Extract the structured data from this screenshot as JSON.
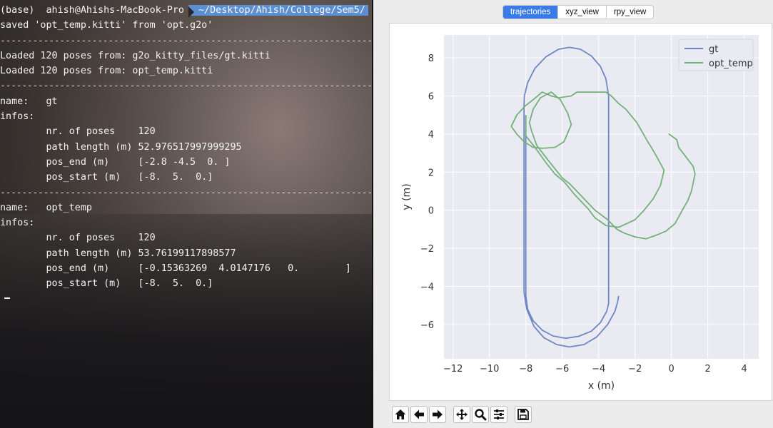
{
  "terminal": {
    "prompt": {
      "env": "(base)",
      "user_host": "ahish@Ahishs-MacBook-Pro",
      "path": "~/Desktop/Ahish/College/Sem5/"
    },
    "lines": [
      {
        "kind": "text",
        "text": "saved 'opt_temp.kitti' from 'opt.g2o'"
      },
      {
        "kind": "sep",
        "text": "--------------------------------------------------------------------------------"
      },
      {
        "kind": "text",
        "text": "Loaded 120 poses from: g2o_kitty_files/gt.kitti"
      },
      {
        "kind": "text",
        "text": "Loaded 120 poses from: opt_temp.kitti"
      },
      {
        "kind": "sep",
        "text": "--------------------------------------------------------------------------------"
      },
      {
        "kind": "text",
        "text": "name:   gt"
      },
      {
        "kind": "text",
        "text": "infos:"
      },
      {
        "kind": "text",
        "text": "        nr. of poses    120"
      },
      {
        "kind": "text",
        "text": "        path length (m) 52.976517997999295"
      },
      {
        "kind": "text",
        "text": "        pos_end (m)     [-2.8 -4.5  0. ]"
      },
      {
        "kind": "text",
        "text": "        pos_start (m)   [-8.  5.  0.]"
      },
      {
        "kind": "sep",
        "text": "--------------------------------------------------------------------------------"
      },
      {
        "kind": "text",
        "text": "name:   opt_temp"
      },
      {
        "kind": "text",
        "text": "infos:"
      },
      {
        "kind": "text",
        "text": "        nr. of poses    120"
      },
      {
        "kind": "text",
        "text": "        path length (m) 53.76199117898577"
      },
      {
        "kind": "text",
        "text": "        pos_end (m)     [-0.15363269  4.0147176   0.        ]"
      },
      {
        "kind": "text",
        "text": "        pos_start (m)   [-8.  5.  0.]"
      }
    ]
  },
  "plot_window": {
    "tabs": [
      {
        "label": "trajectories",
        "active": true
      },
      {
        "label": "xyz_view",
        "active": false
      },
      {
        "label": "rpy_view",
        "active": false
      }
    ],
    "toolbar": [
      {
        "icon": "home-icon",
        "group": 1
      },
      {
        "icon": "back-arrow-icon",
        "group": 1
      },
      {
        "icon": "forward-arrow-icon",
        "group": 1
      },
      {
        "icon": "pan-icon",
        "group": 2
      },
      {
        "icon": "zoom-icon",
        "group": 2
      },
      {
        "icon": "configure-subplots-icon",
        "group": 2
      },
      {
        "icon": "save-icon",
        "group": 3
      }
    ]
  },
  "chart_data": {
    "type": "line",
    "title": "",
    "xlabel": "x (m)",
    "ylabel": "y (m)",
    "xlim": [
      -12.5,
      4.8
    ],
    "ylim": [
      -7.8,
      9.2
    ],
    "xticks": [
      -12,
      -10,
      -8,
      -6,
      -4,
      -2,
      0,
      2,
      4
    ],
    "yticks": [
      -6,
      -4,
      -2,
      0,
      2,
      4,
      6,
      8
    ],
    "grid": true,
    "legend": "top-right",
    "colors": {
      "gt": "#6e87c4",
      "opt_temp": "#72b179",
      "plot_bg": "#eaeaf2",
      "grid": "#ffffff"
    },
    "series": [
      {
        "name": "gt",
        "points": [
          [
            -8.0,
            5.0
          ],
          [
            -8.0,
            4.6
          ],
          [
            -8.0,
            3.5
          ],
          [
            -8.0,
            2.0
          ],
          [
            -8.0,
            0.0
          ],
          [
            -8.0,
            -2.0
          ],
          [
            -8.0,
            -4.0
          ],
          [
            -8.0,
            -4.5
          ],
          [
            -7.9,
            -5.2
          ],
          [
            -7.6,
            -5.8
          ],
          [
            -7.1,
            -6.3
          ],
          [
            -6.5,
            -6.6
          ],
          [
            -5.8,
            -6.72
          ],
          [
            -5.1,
            -6.62
          ],
          [
            -4.4,
            -6.35
          ],
          [
            -3.9,
            -5.9
          ],
          [
            -3.55,
            -5.3
          ],
          [
            -3.45,
            -4.9
          ],
          [
            -3.45,
            -3.0
          ],
          [
            -3.45,
            0.0
          ],
          [
            -3.45,
            3.0
          ],
          [
            -3.45,
            5.0
          ],
          [
            -3.45,
            6.0
          ],
          [
            -3.6,
            6.9
          ],
          [
            -3.9,
            7.55
          ],
          [
            -4.4,
            8.1
          ],
          [
            -5.0,
            8.45
          ],
          [
            -5.6,
            8.55
          ],
          [
            -6.2,
            8.45
          ],
          [
            -6.9,
            8.05
          ],
          [
            -7.5,
            7.45
          ],
          [
            -7.9,
            6.7
          ],
          [
            -8.08,
            6.0
          ],
          [
            -8.1,
            5.4
          ],
          [
            -8.1,
            3.5
          ],
          [
            -8.1,
            0.0
          ],
          [
            -8.1,
            -3.0
          ],
          [
            -8.1,
            -4.3
          ],
          [
            -7.95,
            -5.2
          ],
          [
            -7.55,
            -6.1
          ],
          [
            -7.0,
            -6.7
          ],
          [
            -6.3,
            -7.05
          ],
          [
            -5.6,
            -7.18
          ],
          [
            -4.8,
            -7.05
          ],
          [
            -4.1,
            -6.65
          ],
          [
            -3.5,
            -6.0
          ],
          [
            -3.1,
            -5.3
          ],
          [
            -2.95,
            -4.8
          ],
          [
            -2.9,
            -4.5
          ]
        ]
      },
      {
        "name": "opt_temp",
        "points": [
          [
            -0.15,
            4.01
          ],
          [
            0.3,
            3.7
          ],
          [
            0.4,
            3.3
          ],
          [
            0.8,
            2.8
          ],
          [
            1.2,
            2.3
          ],
          [
            1.3,
            1.9
          ],
          [
            1.1,
            1.0
          ],
          [
            0.9,
            0.5
          ],
          [
            0.6,
            0.0
          ],
          [
            0.2,
            -0.7
          ],
          [
            -0.3,
            -1.1
          ],
          [
            -0.8,
            -1.3
          ],
          [
            -1.4,
            -1.5
          ],
          [
            -2.0,
            -1.4
          ],
          [
            -2.6,
            -1.2
          ],
          [
            -3.0,
            -1.0
          ],
          [
            -3.5,
            -0.5
          ],
          [
            -4.2,
            0.0
          ],
          [
            -4.9,
            0.7
          ],
          [
            -5.3,
            1.1
          ],
          [
            -5.6,
            1.4
          ],
          [
            -6.0,
            1.7
          ],
          [
            -6.5,
            2.3
          ],
          [
            -7.0,
            2.9
          ],
          [
            -7.4,
            3.4
          ],
          [
            -7.7,
            4.2
          ],
          [
            -7.8,
            4.6
          ],
          [
            -7.6,
            5.3
          ],
          [
            -7.2,
            5.9
          ],
          [
            -6.6,
            6.2
          ],
          [
            -6.1,
            5.8
          ],
          [
            -5.7,
            5.1
          ],
          [
            -5.5,
            4.5
          ],
          [
            -5.9,
            3.6
          ],
          [
            -6.4,
            3.3
          ],
          [
            -7.1,
            3.25
          ],
          [
            -7.6,
            3.3
          ],
          [
            -8.1,
            3.6
          ],
          [
            -8.5,
            4.0
          ],
          [
            -8.8,
            4.4
          ],
          [
            -8.5,
            5.0
          ],
          [
            -8.0,
            5.5
          ],
          [
            -7.6,
            5.8
          ],
          [
            -7.1,
            6.2
          ],
          [
            -6.6,
            6.0
          ],
          [
            -6.2,
            5.9
          ],
          [
            -5.5,
            6.0
          ],
          [
            -5.2,
            6.2
          ],
          [
            -4.4,
            6.2
          ],
          [
            -3.6,
            6.2
          ],
          [
            -3.3,
            6.0
          ],
          [
            -2.9,
            5.6
          ],
          [
            -2.5,
            5.3
          ],
          [
            -1.9,
            4.6
          ],
          [
            -1.6,
            4.1
          ],
          [
            -1.3,
            3.6
          ],
          [
            -1.1,
            3.3
          ],
          [
            -0.8,
            2.8
          ],
          [
            -0.4,
            2.1
          ],
          [
            -0.6,
            1.3
          ],
          [
            -1.0,
            0.6
          ],
          [
            -1.5,
            0.0
          ],
          [
            -2.0,
            -0.5
          ],
          [
            -2.9,
            -0.9
          ],
          [
            -3.6,
            -0.8
          ],
          [
            -4.2,
            -0.4
          ],
          [
            -4.6,
            0.1
          ],
          [
            -4.9,
            0.4
          ],
          [
            -5.3,
            0.8
          ],
          [
            -5.9,
            1.5
          ],
          [
            -6.4,
            1.9
          ],
          [
            -6.9,
            2.5
          ],
          [
            -7.5,
            3.3
          ],
          [
            -8.0,
            3.9
          ],
          [
            -8.0,
            5.0
          ]
        ]
      }
    ]
  }
}
